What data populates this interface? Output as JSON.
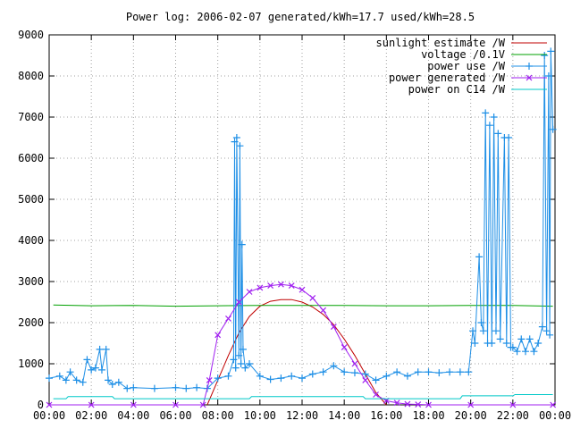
{
  "chart_data": {
    "type": "line",
    "title": "Power log: 2006-02-07 generated/kWh=17.7 used/kWh=28.5",
    "xlabel": "",
    "ylabel": "",
    "xlim": [
      0,
      24
    ],
    "ylim": [
      0,
      9000
    ],
    "x_tick_labels": [
      "00:00",
      "02:00",
      "04:00",
      "06:00",
      "08:00",
      "10:00",
      "12:00",
      "14:00",
      "16:00",
      "18:00",
      "20:00",
      "22:00",
      "00:00"
    ],
    "y_tick_labels": [
      "0",
      "1000",
      "2000",
      "3000",
      "4000",
      "5000",
      "6000",
      "7000",
      "8000",
      "9000"
    ],
    "grid": true,
    "legend_position": "top-right",
    "series": [
      {
        "name": "sunlight estimate /W",
        "color": "#c00000",
        "marker": "none",
        "x": [
          7.5,
          8,
          8.5,
          9,
          9.5,
          10,
          10.5,
          11,
          11.5,
          12,
          12.5,
          13,
          13.5,
          14,
          14.5,
          15,
          15.5,
          16.0
        ],
        "y": [
          0,
          600,
          1200,
          1750,
          2150,
          2400,
          2520,
          2560,
          2560,
          2500,
          2380,
          2200,
          1950,
          1600,
          1200,
          750,
          300,
          0
        ]
      },
      {
        "name": "voltage /0.1V",
        "color": "#00a000",
        "marker": "none",
        "x": [
          0.2,
          2,
          4,
          6,
          8,
          10,
          12,
          14,
          16,
          18,
          20,
          22,
          23.9
        ],
        "y": [
          2430,
          2410,
          2420,
          2400,
          2410,
          2420,
          2420,
          2420,
          2410,
          2410,
          2420,
          2420,
          2400
        ]
      },
      {
        "name": "power use /W",
        "color": "#1e8fe6",
        "marker": "plus",
        "x": [
          0,
          0.5,
          0.8,
          1.0,
          1.3,
          1.6,
          1.8,
          2.0,
          2.2,
          2.4,
          2.5,
          2.7,
          2.8,
          3.0,
          3.3,
          3.7,
          4.0,
          5.0,
          6.0,
          6.5,
          7.0,
          7.5,
          8.0,
          8.5,
          8.75,
          8.8,
          8.85,
          8.9,
          9.0,
          9.05,
          9.1,
          9.15,
          9.2,
          9.3,
          9.5,
          10.0,
          10.5,
          11.0,
          11.5,
          12.0,
          12.5,
          13.0,
          13.5,
          14.0,
          14.5,
          15.0,
          15.5,
          16.0,
          16.5,
          17.0,
          17.5,
          18.0,
          18.5,
          19.0,
          19.5,
          19.9,
          20.1,
          20.2,
          20.4,
          20.5,
          20.6,
          20.7,
          20.8,
          20.9,
          21.0,
          21.1,
          21.2,
          21.3,
          21.4,
          21.6,
          21.7,
          21.8,
          21.9,
          22.0,
          22.2,
          22.4,
          22.6,
          22.8,
          23.0,
          23.2,
          23.4,
          23.5,
          23.6,
          23.7,
          23.75,
          23.8,
          23.9
        ],
        "y": [
          650,
          700,
          600,
          800,
          600,
          550,
          1100,
          850,
          900,
          1350,
          850,
          1350,
          600,
          500,
          550,
          400,
          420,
          400,
          420,
          400,
          420,
          400,
          650,
          700,
          1100,
          6400,
          900,
          6500,
          1200,
          6300,
          1000,
          3900,
          1350,
          900,
          1000,
          700,
          620,
          650,
          700,
          650,
          750,
          800,
          950,
          800,
          780,
          750,
          600,
          700,
          800,
          700,
          800,
          800,
          780,
          800,
          800,
          800,
          1800,
          1500,
          3600,
          2000,
          1800,
          7100,
          1500,
          6800,
          1500,
          7000,
          1800,
          6600,
          1600,
          6500,
          1500,
          6500,
          1400,
          1400,
          1300,
          1600,
          1300,
          1600,
          1300,
          1500,
          1900,
          8500,
          1800,
          8000,
          1700,
          8600,
          6700
        ]
      },
      {
        "name": "power generated /W",
        "color": "#a020f0",
        "marker": "x",
        "x": [
          0,
          2,
          4,
          6,
          7.3,
          7.6,
          8.0,
          8.5,
          9.0,
          9.5,
          10.0,
          10.5,
          11.0,
          11.5,
          12.0,
          12.5,
          13.0,
          13.5,
          14.0,
          14.5,
          15.0,
          15.5,
          16.0,
          16.5,
          17.0,
          17.5,
          18.0,
          20.0,
          22.0,
          23.9
        ],
        "y": [
          0,
          0,
          0,
          0,
          0,
          600,
          1700,
          2100,
          2500,
          2750,
          2850,
          2900,
          2930,
          2900,
          2800,
          2600,
          2300,
          1900,
          1400,
          1000,
          600,
          250,
          100,
          50,
          20,
          10,
          0,
          0,
          0,
          0
        ]
      },
      {
        "name": "power on C14 /W",
        "color": "#00c8c8",
        "marker": "none",
        "x": [
          0.2,
          0.8,
          0.9,
          3.0,
          3.1,
          8.0,
          8.1,
          9.5,
          9.6,
          14.9,
          15.0,
          19.5,
          19.6,
          22.0,
          22.1,
          23.9
        ],
        "y": [
          150,
          150,
          200,
          200,
          150,
          150,
          150,
          150,
          200,
          200,
          150,
          150,
          220,
          220,
          250,
          250
        ]
      }
    ]
  }
}
